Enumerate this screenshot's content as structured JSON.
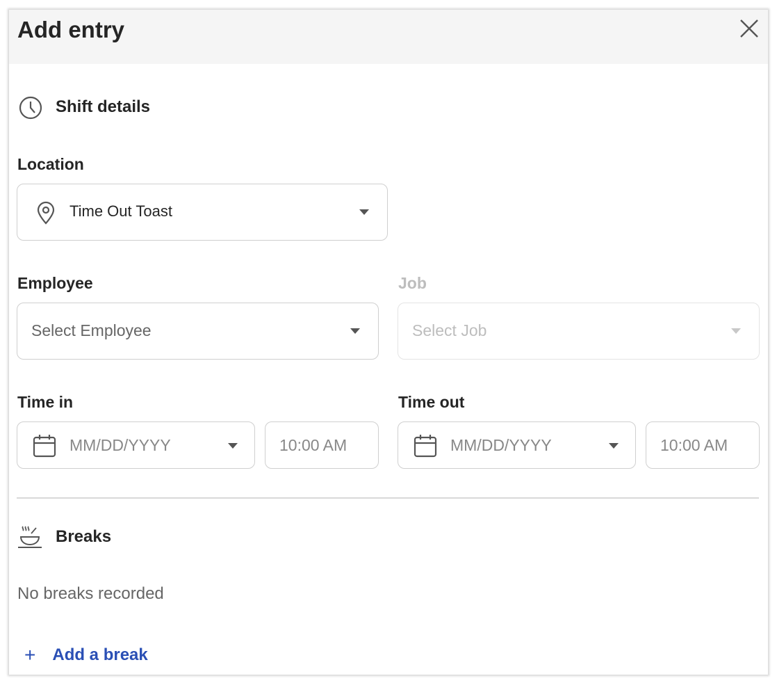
{
  "dialog": {
    "title": "Add entry",
    "close_icon": "close-icon"
  },
  "shift_details": {
    "heading": "Shift details",
    "location": {
      "label": "Location",
      "value": "Time Out Toast"
    },
    "employee": {
      "label": "Employee",
      "placeholder": "Select Employee"
    },
    "job": {
      "label": "Job",
      "placeholder": "Select Job",
      "disabled": true
    },
    "time_in": {
      "label": "Time in",
      "date_placeholder": "MM/DD/YYYY",
      "time_placeholder": "10:00 AM"
    },
    "time_out": {
      "label": "Time out",
      "date_placeholder": "MM/DD/YYYY",
      "time_placeholder": "10:00 AM"
    }
  },
  "breaks": {
    "heading": "Breaks",
    "empty_text": "No breaks recorded",
    "add_label": "Add a break",
    "add_icon": "+"
  },
  "colors": {
    "link": "#2a4fb5",
    "header_bg": "#f5f5f5"
  }
}
